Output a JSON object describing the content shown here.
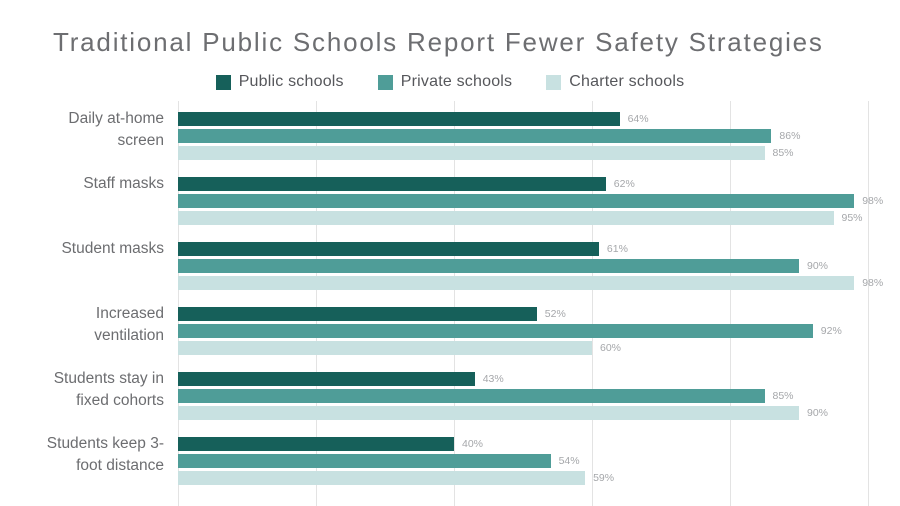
{
  "chart_data": {
    "type": "bar",
    "orientation": "horizontal",
    "title": "Traditional Public Schools Report Fewer Safety Strategies",
    "categories": [
      "Daily at-home screen",
      "Staff masks",
      "Student masks",
      "Increased ventilation",
      "Students stay in fixed cohorts",
      "Students keep 3-foot distance"
    ],
    "category_lines": [
      [
        "Daily at-home",
        "screen"
      ],
      [
        "Staff masks"
      ],
      [
        "Student masks"
      ],
      [
        "Increased",
        "ventilation"
      ],
      [
        "Students stay in",
        "fixed cohorts"
      ],
      [
        "Students keep 3-",
        "foot distance"
      ]
    ],
    "series": [
      {
        "name": "Public schools",
        "color": "#16605a",
        "values": [
          64,
          62,
          61,
          52,
          43,
          40
        ]
      },
      {
        "name": "Private schools",
        "color": "#4f9d98",
        "values": [
          86,
          98,
          90,
          92,
          85,
          54
        ]
      },
      {
        "name": "Charter schools",
        "color": "#c8e1e1",
        "values": [
          85,
          95,
          98,
          60,
          90,
          59
        ]
      }
    ],
    "value_suffix": "%",
    "value_labels": true,
    "xlim": [
      0,
      100
    ],
    "gridline_values": [
      0,
      20,
      40,
      60,
      80,
      100
    ],
    "grid": true,
    "legend_position": "top-center"
  },
  "style": {
    "background": "#ffffff",
    "title_color": "#6d6e71",
    "legend_text_color": "#56575b",
    "category_label_color": "#6c6d70",
    "value_label_color": "#a5a7aa",
    "gridline_color": "#e3e3e3"
  }
}
